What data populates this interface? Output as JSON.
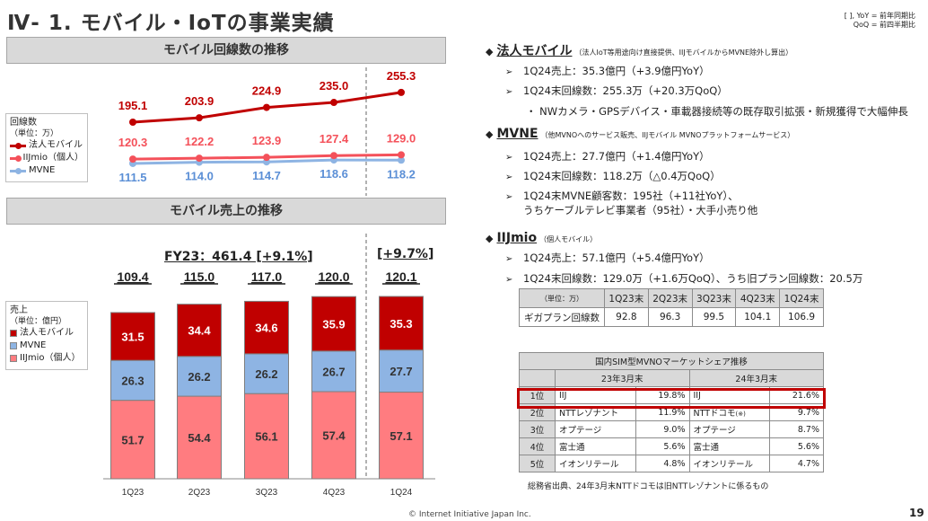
{
  "title": "Ⅳ- 1.  モバイル・IoTの事業実績",
  "note": {
    "line1": "[ ], YoY = 前年同期比",
    "line2": "QoQ = 前四半期比"
  },
  "colors": {
    "corporate": "#c00000",
    "iijmio_line": "#f4515a",
    "mvne_line": "#8eb4e3",
    "iijmio_bar": "#ff7c80",
    "mvne_bar": "#8eb4e3"
  },
  "line_section": {
    "header": "モバイル回線数の推移",
    "legend": {
      "title": "回線数",
      "unit": "（単位：万）",
      "items": [
        "法人モバイル",
        "IIJmio（個人）",
        "MVNE"
      ]
    }
  },
  "bar_section": {
    "header": "モバイル売上の推移",
    "legend": {
      "title": "売上",
      "unit": "（単位：億円）",
      "items": [
        "法人モバイル",
        "MVNE",
        "IIJmio（個人）"
      ]
    },
    "fy23_label": "FY23：461.4 [+9.1%]",
    "q_growth": "[+9.7%]"
  },
  "chart_data": [
    {
      "type": "line",
      "categories": [
        "1Q23",
        "2Q23",
        "3Q23",
        "4Q23",
        "1Q24"
      ],
      "series": [
        {
          "name": "法人モバイル",
          "values": [
            195.1,
            203.9,
            224.9,
            235.0,
            255.3
          ]
        },
        {
          "name": "IIJmio（個人）",
          "values": [
            120.3,
            122.2,
            123.9,
            127.4,
            129.0
          ]
        },
        {
          "name": "MVNE",
          "values": [
            111.5,
            114.0,
            114.7,
            118.6,
            118.2
          ]
        }
      ]
    },
    {
      "type": "bar",
      "stacked": true,
      "categories": [
        "1Q23",
        "2Q23",
        "3Q23",
        "4Q23",
        "1Q24"
      ],
      "totals": [
        "109.4",
        "115.0",
        "117.0",
        "120.0",
        "120.1"
      ],
      "series": [
        {
          "name": "IIJmio（個人）",
          "values": [
            51.7,
            54.4,
            56.1,
            57.4,
            57.1
          ]
        },
        {
          "name": "MVNE",
          "values": [
            26.3,
            26.2,
            26.2,
            26.7,
            27.7
          ]
        },
        {
          "name": "法人モバイル",
          "values": [
            31.5,
            34.4,
            34.6,
            35.9,
            35.3
          ]
        }
      ]
    }
  ],
  "right": {
    "corp": {
      "name": "法人モバイル",
      "sub": "（法人IoT等用途向け直接提供、IIJモバイルからMVNE除外し算出）",
      "b1": "1Q24売上：35.3億円（+3.9億円YoY）",
      "b2": "1Q24末回線数：255.3万（+20.3万QoQ）",
      "b3": "・  NWカメラ・GPSデバイス・車載器接続等の既存取引拡張・新規獲得で大幅伸長"
    },
    "mvne": {
      "name": "MVNE",
      "sub": "（他MVNOへのサービス販売、IIJモバイル MVNOプラットフォームサービス）",
      "b1": "1Q24売上：27.7億円（+1.4億円YoY）",
      "b2": "1Q24末回線数：118.2万（△0.4万QoQ）",
      "b3": "1Q24末MVNE顧客数：195社（+11社YoY）、",
      "b3b": "うちケーブルテレビ事業者（95社）・大手小売り他"
    },
    "iijmio": {
      "name": "IIJmio",
      "sub": "（個人モバイル）",
      "b1": "1Q24売上：57.1億円（+5.4億円YoY）",
      "b2": "1Q24末回線数：129.0万（+1.6万QoQ）、うち旧プラン回線数：20.5万"
    },
    "giga": {
      "unit": "（単位：万）",
      "headers": [
        "1Q23末",
        "2Q23末",
        "3Q23末",
        "4Q23末",
        "1Q24末"
      ],
      "row_label": "ギガプラン回線数",
      "values": [
        "92.8",
        "96.3",
        "99.5",
        "104.1",
        "106.9"
      ]
    },
    "share": {
      "title": "国内SIM型MVNOマーケットシェア推移",
      "col1": "23年3月末",
      "col2": "24年3月末",
      "rows": [
        {
          "rank": "1位",
          "a": "IIJ",
          "ap": "19.8%",
          "b": "IIJ",
          "bp": "21.6%"
        },
        {
          "rank": "2位",
          "a": "NTTレゾナント",
          "ap": "11.9%",
          "b": "NTTドコモ",
          "bnote": "(※)",
          "bp": "9.7%"
        },
        {
          "rank": "3位",
          "a": "オプテージ",
          "ap": "9.0%",
          "b": "オプテージ",
          "bp": "8.7%"
        },
        {
          "rank": "4位",
          "a": "富士通",
          "ap": "5.6%",
          "b": "富士通",
          "bp": "5.6%"
        },
        {
          "rank": "5位",
          "a": "イオンリテール",
          "ap": "4.8%",
          "b": "イオンリテール",
          "bp": "4.7%"
        }
      ],
      "source": "総務省出典、24年3月末NTTドコモは旧NTTレゾナントに係るもの"
    }
  },
  "footer": {
    "copyright": "© Internet Initiative Japan Inc.",
    "page": "19"
  }
}
